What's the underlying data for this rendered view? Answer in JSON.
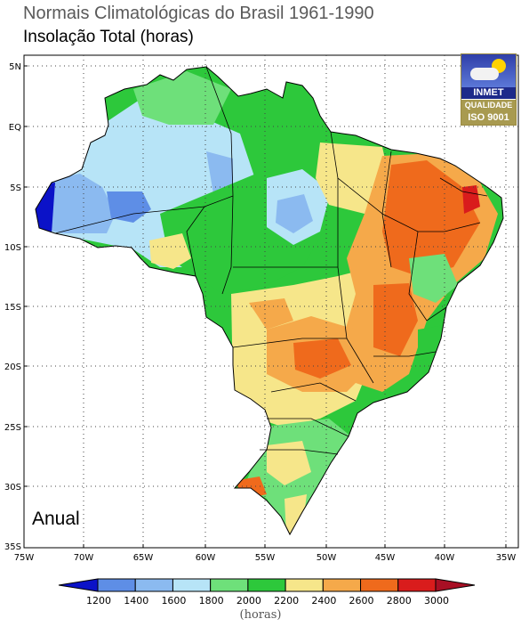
{
  "title": "Normais Climatológicas do Brasil 1961-1990",
  "subtitle": "Insolação Total (horas)",
  "season_label": "Anual",
  "logo": {
    "name": "INMET",
    "quality": "QUALIDADE",
    "certification": "ISO 9001"
  },
  "axes": {
    "lat_ticks": [
      "5N",
      "EQ",
      "5S",
      "10S",
      "15S",
      "20S",
      "25S",
      "30S",
      "35S"
    ],
    "lon_ticks": [
      "75W",
      "70W",
      "65W",
      "60W",
      "55W",
      "50W",
      "45W",
      "40W",
      "35W"
    ]
  },
  "legend": {
    "units": "(horas)",
    "levels": [
      "1200",
      "1400",
      "1600",
      "1800",
      "2000",
      "2200",
      "2400",
      "2600",
      "2800",
      "3000"
    ],
    "colors": [
      "#0b12c8",
      "#5e8ee6",
      "#8bbaf0",
      "#b7e4f7",
      "#6ee07a",
      "#2dc83b",
      "#f6e68a",
      "#f5a94a",
      "#ef6a1c",
      "#d91c1c",
      "#a80f24"
    ]
  },
  "map": {
    "region": "Brasil",
    "grid": "dotted 5° graticule"
  }
}
